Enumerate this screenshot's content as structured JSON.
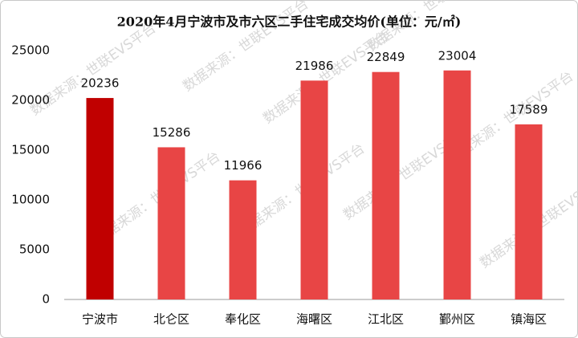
{
  "chart_data": {
    "type": "bar",
    "title": "2020年4月宁波市及市六区二手住宅成交均价(单位：元/㎡)",
    "watermark": "数据来源：世联EVS平台",
    "categories": [
      "宁波市",
      "北仑区",
      "奉化区",
      "海曙区",
      "江北区",
      "鄞州区",
      "镇海区"
    ],
    "values": [
      20236,
      15286,
      11966,
      21986,
      22849,
      23004,
      17589
    ],
    "colors": [
      "#c00000",
      "#e84545",
      "#e84545",
      "#e84545",
      "#e84545",
      "#e84545",
      "#e84545"
    ],
    "ylim": [
      0,
      25000
    ],
    "yticks": [
      0,
      5000,
      10000,
      15000,
      20000,
      25000
    ],
    "grid": false
  }
}
